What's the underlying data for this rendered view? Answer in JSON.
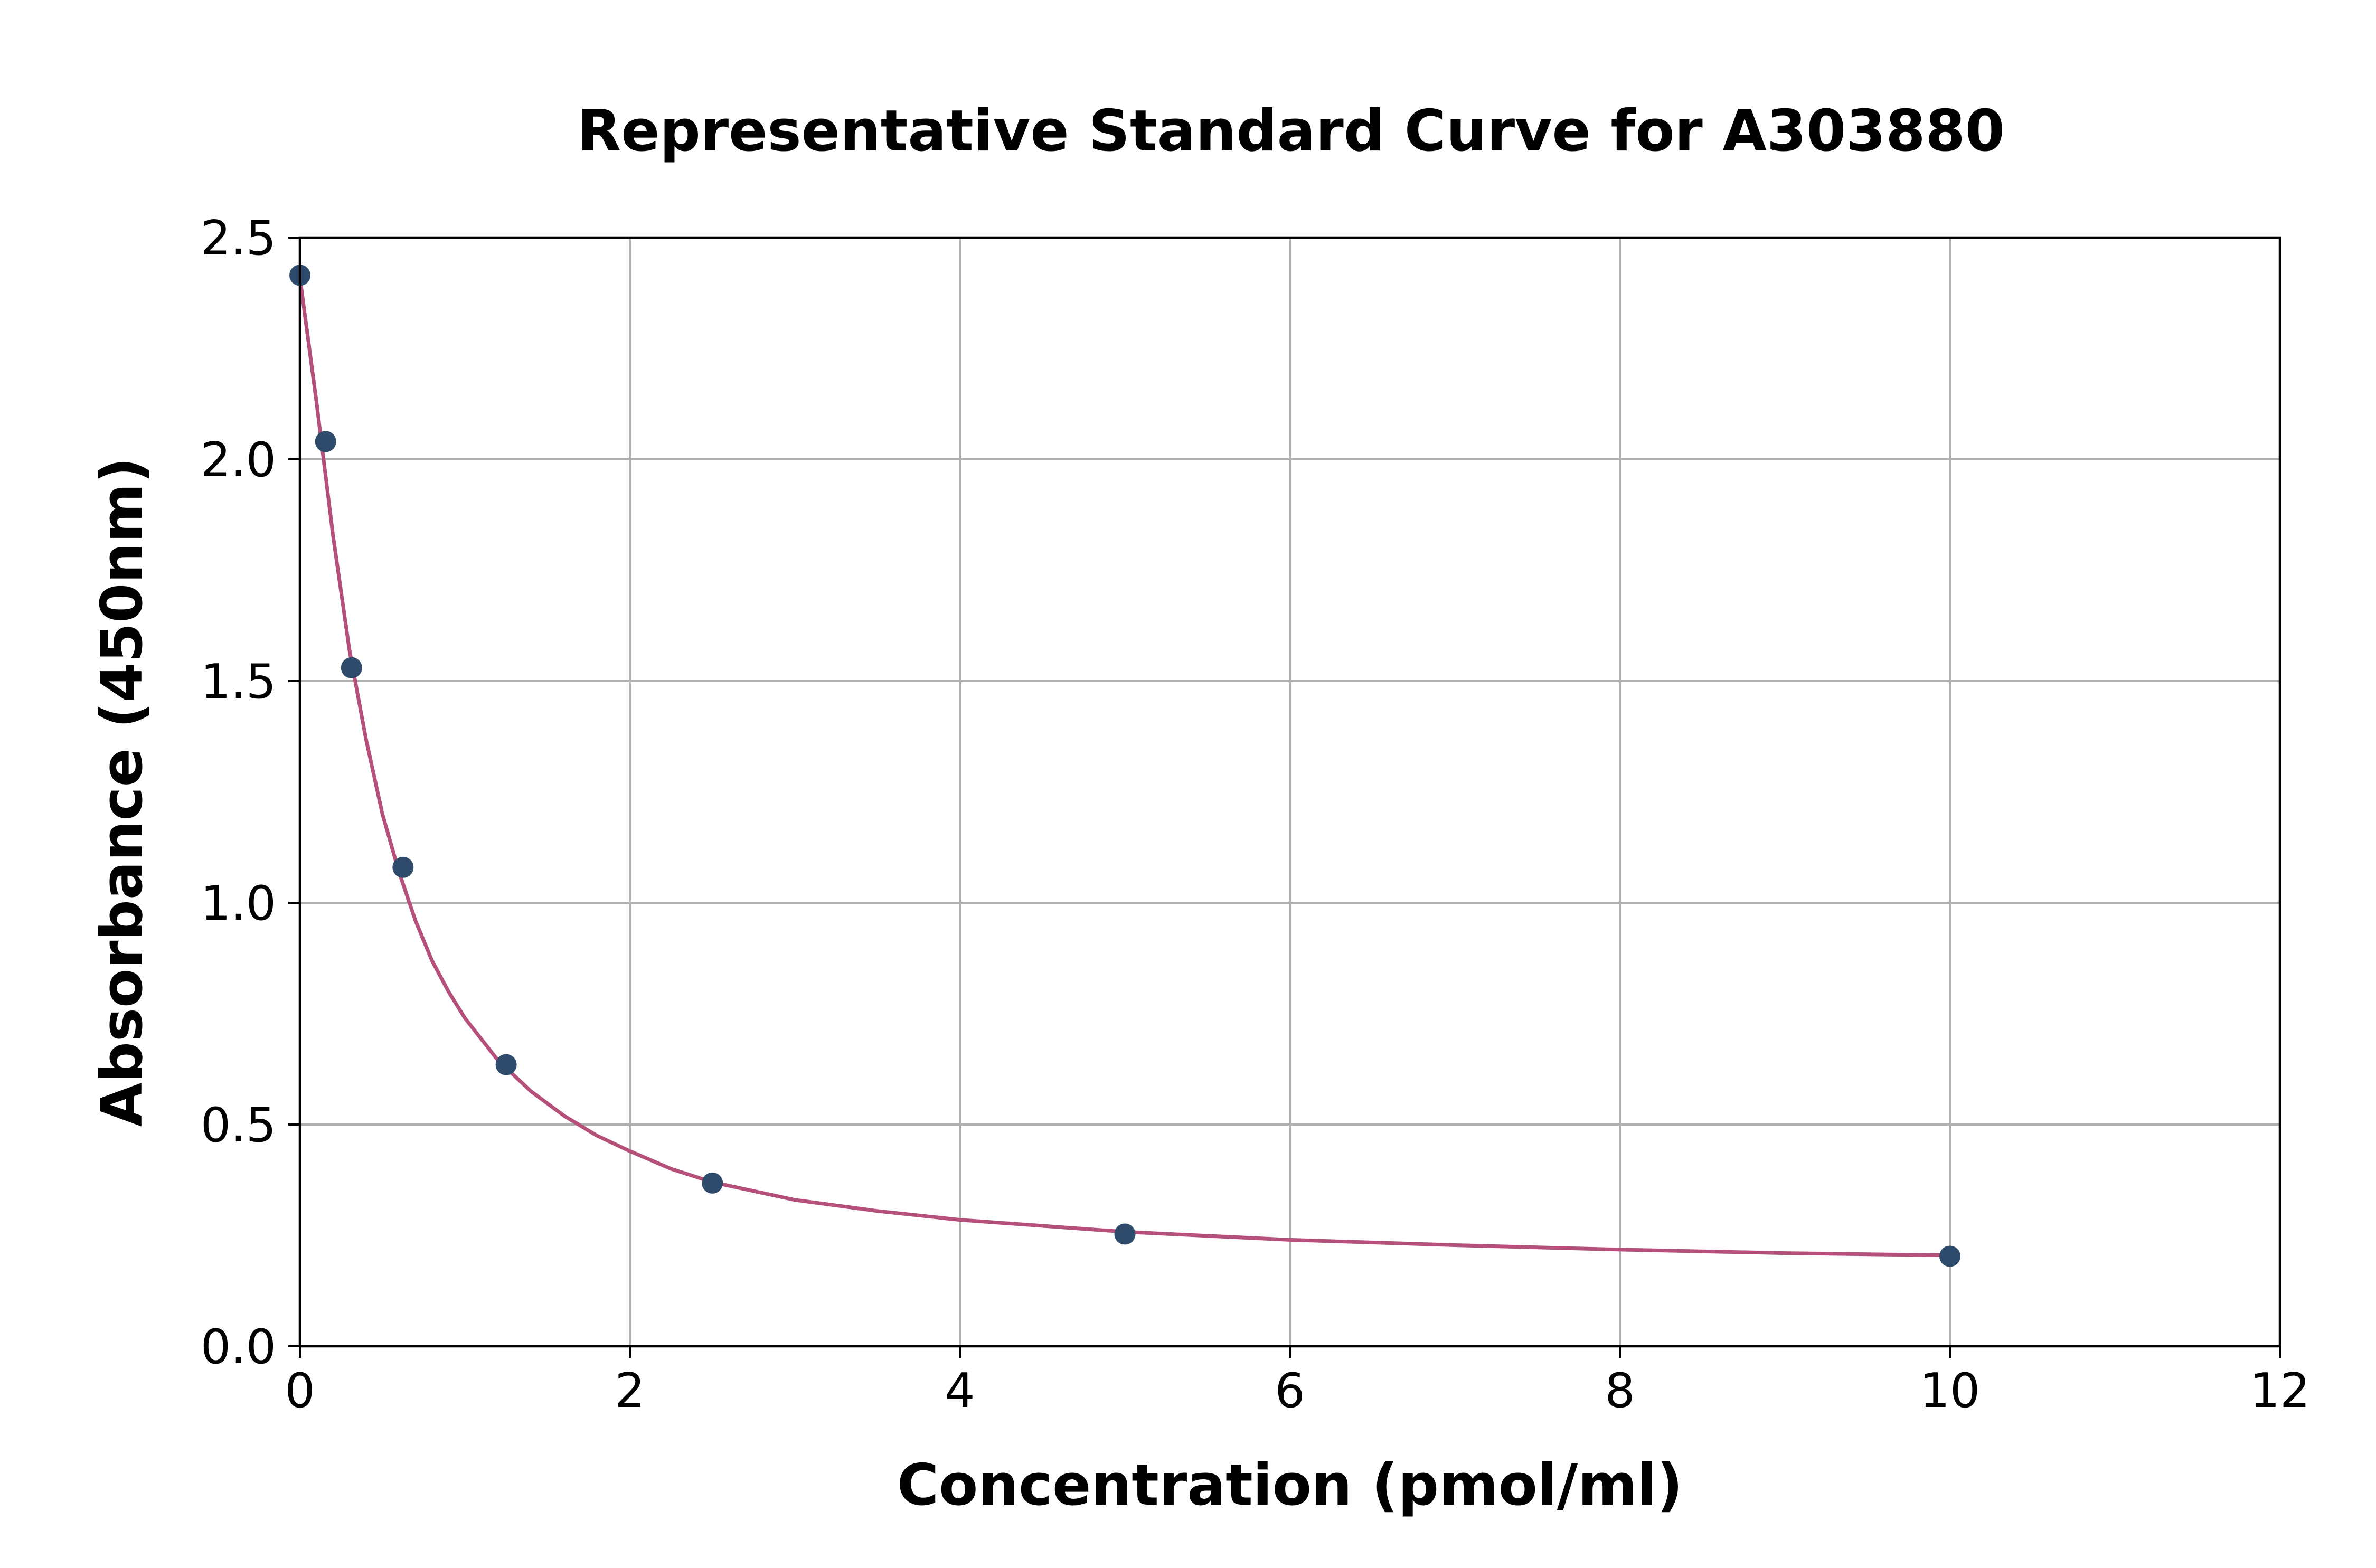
{
  "chart_data": {
    "type": "scatter",
    "title": "Representative Standard Curve for A303880",
    "xlabel": "Concentration (pmol/ml)",
    "ylabel": "Absorbance (450nm)",
    "xlim": [
      0,
      12
    ],
    "ylim": [
      0,
      2.5
    ],
    "xticks": [
      0,
      2,
      4,
      6,
      8,
      10,
      12
    ],
    "yticks": [
      0.0,
      0.5,
      1.0,
      1.5,
      2.0,
      2.5
    ],
    "xtick_labels": [
      "0",
      "2",
      "4",
      "6",
      "8",
      "10",
      "12"
    ],
    "ytick_labels": [
      "0.0",
      "0.5",
      "1.0",
      "1.5",
      "2.0",
      "2.5"
    ],
    "grid": true,
    "points": {
      "x": [
        0,
        0.156,
        0.313,
        0.625,
        1.25,
        2.5,
        5,
        10
      ],
      "y": [
        2.415,
        2.04,
        1.53,
        1.08,
        0.635,
        0.368,
        0.253,
        0.203
      ]
    },
    "fit_curve": {
      "x": [
        0,
        0.1,
        0.2,
        0.3,
        0.4,
        0.5,
        0.6,
        0.7,
        0.8,
        0.9,
        1.0,
        1.2,
        1.4,
        1.6,
        1.8,
        2.0,
        2.25,
        2.5,
        3.0,
        3.5,
        4.0,
        5.0,
        6.0,
        7.0,
        8.0,
        9.0,
        10.0
      ],
      "y": [
        2.41,
        2.13,
        1.83,
        1.57,
        1.37,
        1.2,
        1.07,
        0.96,
        0.87,
        0.8,
        0.74,
        0.645,
        0.575,
        0.52,
        0.475,
        0.44,
        0.4,
        0.37,
        0.33,
        0.305,
        0.285,
        0.258,
        0.24,
        0.228,
        0.218,
        0.21,
        0.205
      ]
    },
    "colors": {
      "points": "#2f4b6c",
      "curve": "#b5507a",
      "grid": "#b0b0b0",
      "axes": "#000000"
    }
  }
}
